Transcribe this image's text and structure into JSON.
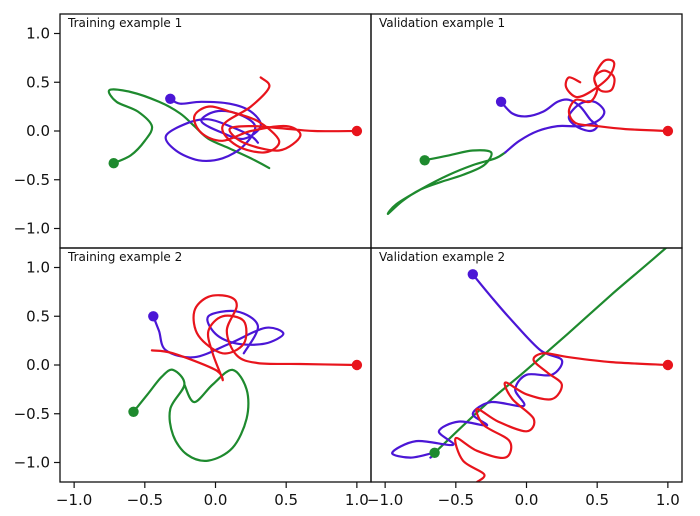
{
  "colors": {
    "red": "#e8141c",
    "blue": "#4b16d6",
    "green": "#1e8a2e"
  },
  "chart_data": [
    {
      "type": "line",
      "title": "Training example 1",
      "xlim": [
        -1.1,
        1.1
      ],
      "ylim": [
        -1.2,
        1.2
      ],
      "yticks": [
        "1.0",
        "0.5",
        "0.0",
        "−0.5",
        "−1.0"
      ],
      "series": [
        {
          "color": "red",
          "endpoint": [
            1.0,
            0.0
          ],
          "x": [
            1.0,
            0.7,
            0.45,
            0.25,
            0.1,
            0.2,
            0.45,
            0.6,
            0.5,
            0.25,
            0.05,
            -0.1,
            -0.15,
            -0.05,
            0.1,
            0.3,
            0.45,
            0.35,
            0.15,
            0.05,
            0.25,
            0.38,
            0.32
          ],
          "y": [
            0.0,
            0.0,
            0.03,
            0.05,
            0.02,
            -0.12,
            -0.2,
            -0.05,
            0.05,
            0.0,
            -0.1,
            -0.02,
            0.15,
            0.25,
            0.2,
            0.1,
            -0.1,
            -0.22,
            -0.15,
            0.05,
            0.25,
            0.45,
            0.55
          ]
        },
        {
          "color": "blue",
          "endpoint": [
            -0.32,
            0.33
          ],
          "x": [
            -0.32,
            -0.25,
            -0.1,
            0.1,
            0.25,
            0.32,
            0.2,
            0.05,
            -0.1,
            0.0,
            0.15,
            0.28,
            0.2,
            0.05,
            -0.12,
            -0.28,
            -0.35,
            -0.2,
            -0.05,
            0.1,
            0.25,
            0.3
          ],
          "y": [
            0.33,
            0.28,
            0.3,
            0.28,
            0.2,
            0.05,
            -0.08,
            -0.02,
            0.1,
            0.2,
            0.18,
            0.05,
            -0.15,
            -0.28,
            -0.3,
            -0.2,
            -0.05,
            0.08,
            0.12,
            0.05,
            -0.05,
            -0.12
          ]
        },
        {
          "color": "green",
          "endpoint": [
            -0.72,
            -0.33
          ],
          "x": [
            -0.72,
            -0.6,
            -0.5,
            -0.45,
            -0.55,
            -0.7,
            -0.75,
            -0.6,
            -0.4,
            -0.25,
            -0.15,
            -0.05,
            0.1,
            0.25,
            0.38
          ],
          "y": [
            -0.33,
            -0.25,
            -0.1,
            0.05,
            0.2,
            0.3,
            0.42,
            0.4,
            0.3,
            0.18,
            0.05,
            -0.08,
            -0.18,
            -0.28,
            -0.38
          ]
        }
      ]
    },
    {
      "type": "line",
      "title": "Validation example 1",
      "xlim": [
        -1.1,
        1.1
      ],
      "ylim": [
        -1.2,
        1.2
      ],
      "series": [
        {
          "color": "red",
          "endpoint": [
            1.0,
            0.0
          ],
          "x": [
            1.0,
            0.7,
            0.5,
            0.35,
            0.3,
            0.35,
            0.45,
            0.5,
            0.48,
            0.55,
            0.62,
            0.6,
            0.52,
            0.48,
            0.55,
            0.62,
            0.58,
            0.45,
            0.35,
            0.28,
            0.3,
            0.38
          ],
          "y": [
            0.0,
            0.02,
            0.05,
            0.08,
            0.2,
            0.32,
            0.3,
            0.42,
            0.55,
            0.62,
            0.55,
            0.42,
            0.42,
            0.55,
            0.72,
            0.7,
            0.55,
            0.4,
            0.35,
            0.45,
            0.55,
            0.5
          ]
        },
        {
          "color": "blue",
          "endpoint": [
            -0.18,
            0.3
          ],
          "x": [
            -0.18,
            -0.1,
            0.0,
            0.12,
            0.22,
            0.3,
            0.38,
            0.45,
            0.5,
            0.45,
            0.35,
            0.3,
            0.38,
            0.48,
            0.55,
            0.5,
            0.38,
            0.22,
            0.08,
            -0.05,
            -0.15
          ],
          "y": [
            0.3,
            0.18,
            0.15,
            0.2,
            0.3,
            0.32,
            0.25,
            0.12,
            0.05,
            0.0,
            0.05,
            0.15,
            0.28,
            0.3,
            0.2,
            0.1,
            0.05,
            0.05,
            0.0,
            -0.1,
            -0.22
          ]
        },
        {
          "color": "green",
          "endpoint": [
            -0.72,
            -0.3
          ],
          "x": [
            -0.72,
            -0.55,
            -0.38,
            -0.25,
            -0.3,
            -0.45,
            -0.6,
            -0.75,
            -0.88,
            -0.98,
            -0.92,
            -0.75,
            -0.55,
            -0.38,
            -0.22,
            -0.15
          ],
          "y": [
            -0.3,
            -0.25,
            -0.2,
            -0.22,
            -0.35,
            -0.45,
            -0.52,
            -0.6,
            -0.72,
            -0.85,
            -0.75,
            -0.6,
            -0.45,
            -0.35,
            -0.28,
            -0.22
          ]
        }
      ]
    },
    {
      "type": "line",
      "title": "Training example 2",
      "xlim": [
        -1.1,
        1.1
      ],
      "ylim": [
        -1.2,
        1.2
      ],
      "yticks": [
        "1.0",
        "0.5",
        "0.0",
        "−0.5",
        "−1.0"
      ],
      "series": [
        {
          "color": "red",
          "endpoint": [
            1.0,
            0.0
          ],
          "x": [
            1.0,
            0.6,
            0.3,
            0.15,
            0.08,
            0.15,
            0.1,
            -0.05,
            -0.15,
            -0.12,
            0.05,
            0.2,
            0.2,
            0.05,
            -0.05,
            -0.02,
            0.05,
            0.0,
            -0.3,
            -0.45
          ],
          "y": [
            0.0,
            0.01,
            0.02,
            0.1,
            0.35,
            0.6,
            0.7,
            0.7,
            0.55,
            0.3,
            0.12,
            0.22,
            0.45,
            0.5,
            0.35,
            0.12,
            -0.15,
            -0.05,
            0.12,
            0.15
          ]
        },
        {
          "color": "blue",
          "endpoint": [
            -0.44,
            0.5
          ],
          "x": [
            -0.44,
            -0.4,
            -0.35,
            -0.15,
            0.1,
            0.35,
            0.48,
            0.35,
            0.15,
            0.0,
            -0.05,
            0.15,
            0.3,
            0.2
          ],
          "y": [
            0.5,
            0.35,
            0.15,
            0.08,
            0.22,
            0.38,
            0.32,
            0.22,
            0.22,
            0.32,
            0.5,
            0.55,
            0.4,
            0.12
          ]
        },
        {
          "color": "green",
          "endpoint": [
            -0.58,
            -0.48
          ],
          "x": [
            -0.58,
            -0.48,
            -0.38,
            -0.3,
            -0.22,
            -0.32,
            -0.3,
            -0.2,
            -0.05,
            0.12,
            0.22,
            0.22,
            0.12,
            -0.02,
            -0.15,
            -0.22
          ],
          "y": [
            -0.48,
            -0.3,
            -0.12,
            -0.05,
            -0.2,
            -0.45,
            -0.72,
            -0.92,
            -0.98,
            -0.85,
            -0.55,
            -0.25,
            -0.05,
            -0.2,
            -0.38,
            -0.2
          ]
        }
      ]
    },
    {
      "type": "line",
      "title": "Validation example 2",
      "xlim": [
        -1.1,
        1.1
      ],
      "ylim": [
        -1.2,
        1.2
      ],
      "xticks": [
        "−1.0",
        "−0.5",
        "0.0",
        "0.5",
        "1.0"
      ],
      "series": [
        {
          "color": "red",
          "endpoint": [
            1.0,
            0.0
          ],
          "x": [
            1.0,
            0.6,
            0.3,
            0.12,
            0.05,
            0.15,
            0.25,
            0.18,
            0.0,
            -0.15,
            -0.1,
            0.05,
            0.0,
            -0.2,
            -0.35,
            -0.3,
            -0.12,
            -0.15,
            -0.35,
            -0.5,
            -0.45,
            -0.3,
            -0.35
          ],
          "y": [
            0.0,
            0.03,
            0.08,
            0.12,
            0.05,
            -0.08,
            -0.2,
            -0.35,
            -0.3,
            -0.18,
            -0.35,
            -0.55,
            -0.68,
            -0.58,
            -0.45,
            -0.62,
            -0.78,
            -0.95,
            -0.88,
            -0.75,
            -0.98,
            -1.12,
            -1.2
          ]
        },
        {
          "color": "blue",
          "endpoint": [
            -0.38,
            0.93
          ],
          "x": [
            -0.38,
            -0.25,
            -0.1,
            0.1,
            0.25,
            0.18,
            0.0,
            -0.08,
            -0.02,
            -0.25,
            -0.38,
            -0.28,
            -0.48,
            -0.62,
            -0.52,
            -0.78,
            -0.95,
            -0.82,
            -0.65,
            -0.68
          ],
          "y": [
            0.93,
            0.7,
            0.45,
            0.15,
            0.05,
            -0.1,
            -0.1,
            -0.25,
            -0.42,
            -0.38,
            -0.5,
            -0.62,
            -0.58,
            -0.68,
            -0.82,
            -0.78,
            -0.9,
            -0.95,
            -0.9,
            -0.95
          ]
        },
        {
          "color": "green",
          "endpoint": [
            -0.65,
            -0.9
          ],
          "x": [
            -0.65,
            -0.3,
            0.0,
            0.3,
            0.6,
            0.85,
            1.05
          ],
          "y": [
            -0.9,
            -0.42,
            -0.05,
            0.33,
            0.72,
            1.03,
            1.28
          ]
        }
      ]
    }
  ]
}
